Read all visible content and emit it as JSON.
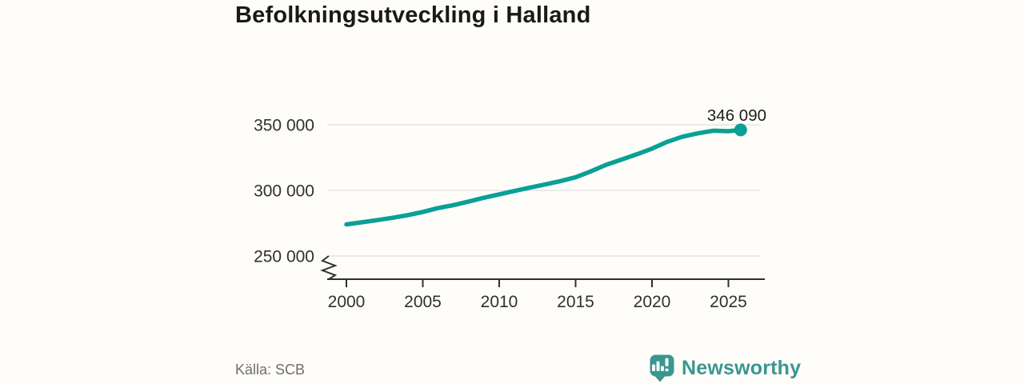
{
  "header": {
    "title": "Befolkningsutveckling i Halland"
  },
  "footer": {
    "source": "Källa: SCB",
    "brand_name": "Newsworthy"
  },
  "icons": {
    "brand_logo": "newsworthy-speech-bubble-bar-chart-icon",
    "axis_break": "y-axis-break-zigzag"
  },
  "colors": {
    "line": "#0aa096",
    "brand": "#3a968f",
    "grid": "#e4e3e1",
    "axis": "#2f2f2f",
    "title": "#191919",
    "muted_text": "#6e6e6e",
    "background": "#fffdfa"
  },
  "chart_data": {
    "type": "line",
    "title": "Befolkningsutveckling i Halland",
    "x": [
      2000,
      2001,
      2002,
      2003,
      2004,
      2005,
      2006,
      2007,
      2008,
      2009,
      2010,
      2011,
      2012,
      2013,
      2014,
      2015,
      2016,
      2017,
      2018,
      2019,
      2020,
      2021,
      2022,
      2023,
      2024,
      2025,
      2025.8
    ],
    "values": [
      274100,
      275700,
      277300,
      279100,
      281100,
      283600,
      286500,
      288800,
      291500,
      294400,
      297000,
      299600,
      302100,
      304500,
      307100,
      310000,
      314500,
      319500,
      323500,
      327500,
      331800,
      337000,
      341000,
      343500,
      345500,
      345100,
      346090
    ],
    "end_value": 346090,
    "end_label": "346 090",
    "xtick_values": [
      2000,
      2005,
      2010,
      2015,
      2020,
      2025
    ],
    "xtick_labels": [
      "2000",
      "2005",
      "2010",
      "2015",
      "2020",
      "2025"
    ],
    "ytick_values": [
      350000,
      300000,
      250000
    ],
    "ytick_labels": [
      "350 000",
      "300 000",
      "250 000"
    ],
    "xlabel": "",
    "ylabel": "",
    "xlim": [
      1999.6,
      2027.4
    ],
    "ylim_visible": [
      246000,
      356000
    ],
    "y_axis_break": true,
    "grid": "horizontal",
    "legend": "none",
    "source": "SCB"
  }
}
